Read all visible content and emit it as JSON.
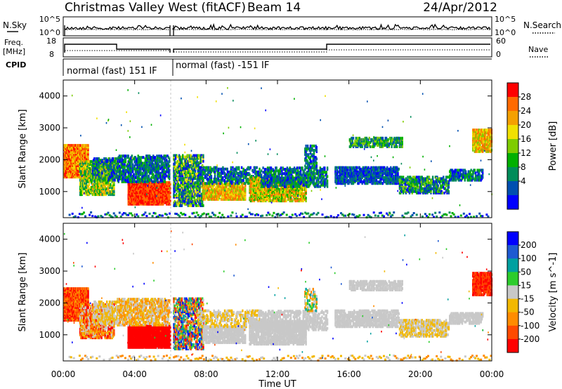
{
  "header": {
    "title": "Christmas Valley West (fitACF)",
    "beam": "Beam 14",
    "date": "24/Apr/2012"
  },
  "strips": {
    "nsky_label": "N.Sky",
    "nsearch_label": "N.Search",
    "freq_label_1": "Freq.",
    "freq_label_2": "[MHz]",
    "nave_label": "Nave",
    "cpid_label": "CPID",
    "noise_left_ticks": [
      "10^5",
      "10^0"
    ],
    "noise_right_ticks": [
      "10^5",
      "10^0"
    ],
    "freq_left_ticks": [
      "18",
      "8"
    ],
    "freq_right_ticks": [
      "60",
      "0"
    ],
    "cpid_segments": [
      "normal (fast) 151 IF",
      "normal (fast) -151 IF"
    ]
  },
  "chart_data": [
    {
      "type": "heatmap",
      "parameter": "power",
      "ylabel": "Slant Range [km]",
      "xlabel": "",
      "colorbar_label": "Power [dB]",
      "colorbar_ticks": [
        "28",
        "24",
        "20",
        "16",
        "12",
        "8",
        "4"
      ],
      "colorbar_colors": [
        "#ff0000",
        "#ff6a00",
        "#f4a000",
        "#f0e000",
        "#7fcc00",
        "#00b000",
        "#008c5a",
        "#004fb0",
        "#0000ff"
      ],
      "ylim": [
        180,
        4500
      ],
      "yticks": [
        "4000",
        "3000",
        "2000",
        "1000"
      ],
      "xlim": [
        0,
        24
      ],
      "xticks": [
        "00:00",
        "04:00",
        "08:00",
        "12:00",
        "16:00",
        "20:00",
        "00:00"
      ]
    },
    {
      "type": "heatmap",
      "parameter": "velocity",
      "ylabel": "Slant Range [km]",
      "xlabel": "Time UT",
      "colorbar_label": "Velocity [m s^-1]",
      "colorbar_ticks": [
        "200",
        "100",
        "50",
        "15",
        "-15",
        "-50",
        "-100",
        "-200"
      ],
      "colorbar_colors": [
        "#0000ff",
        "#1e5ad2",
        "#00a0a0",
        "#2ccc2c",
        "#c8c8c8",
        "#f2b800",
        "#ff8c00",
        "#ff4a00",
        "#ff0000"
      ],
      "ylim": [
        180,
        4500
      ],
      "yticks": [
        "4000",
        "3000",
        "2000",
        "1000"
      ],
      "xlim": [
        0,
        24
      ],
      "xticks": [
        "00:00",
        "04:00",
        "08:00",
        "12:00",
        "16:00",
        "20:00",
        "00:00"
      ]
    }
  ]
}
